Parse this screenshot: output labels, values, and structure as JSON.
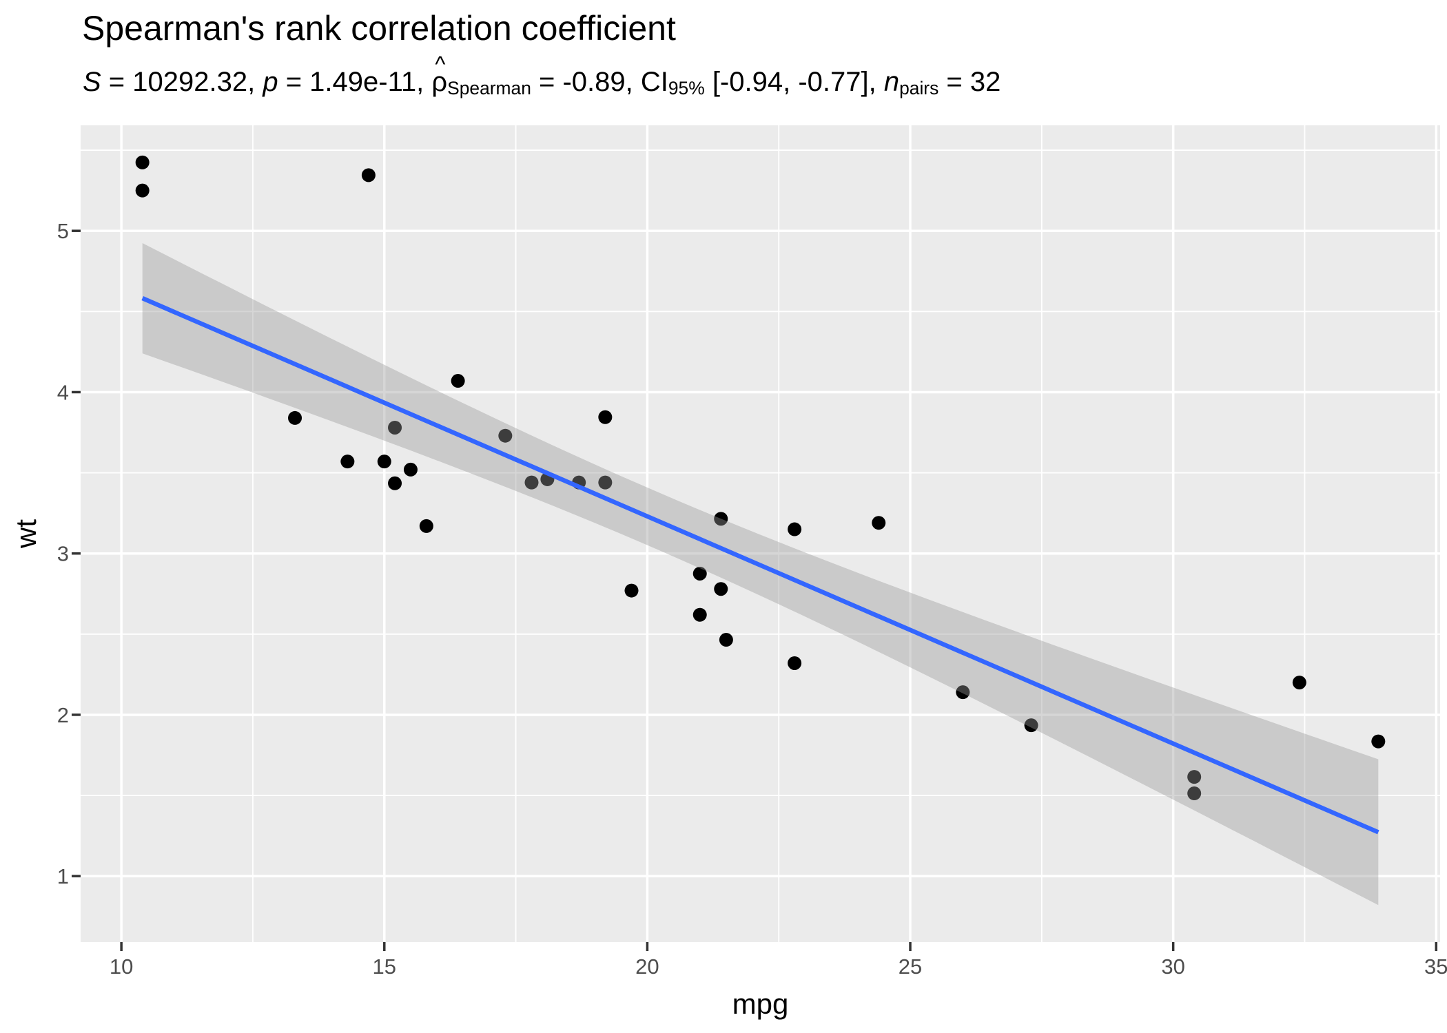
{
  "title": "Spearman's rank correlation coefficient",
  "subtitle_segments": [
    {
      "text": "S",
      "style": "italic"
    },
    {
      "text": " = 10292.32, ",
      "style": "plain"
    },
    {
      "text": "p",
      "style": "italic"
    },
    {
      "text": " = 1.49e-11, ",
      "style": "plain"
    },
    {
      "text": "ρ",
      "style": "hat"
    },
    {
      "text": "Spearman",
      "style": "sub"
    },
    {
      "text": " = -0.89, CI",
      "style": "plain"
    },
    {
      "text": "95%",
      "style": "sub"
    },
    {
      "text": " [-0.94, -0.77], ",
      "style": "plain"
    },
    {
      "text": "n",
      "style": "italic"
    },
    {
      "text": "pairs",
      "style": "sub"
    },
    {
      "text": " = 32",
      "style": "plain"
    }
  ],
  "axes": {
    "x": {
      "title": "mpg",
      "ticks": [
        10,
        15,
        20,
        25,
        30,
        35
      ],
      "minor_ticks": [
        12.5,
        17.5,
        22.5,
        27.5,
        32.5
      ],
      "domain": [
        9.225,
        35.075
      ]
    },
    "y": {
      "title": "wt",
      "ticks": [
        1,
        2,
        3,
        4,
        5
      ],
      "minor_ticks": [
        1.5,
        2.5,
        3.5,
        4.5,
        5.5
      ],
      "domain": [
        0.591,
        5.654
      ]
    }
  },
  "colors": {
    "background": "#FFFFFF",
    "panel_background": "#EBEBEB",
    "grid_major": "#FFFFFF",
    "grid_minor": "#FFFFFF",
    "tick_mark": "#333333",
    "tick_label": "#4D4D4D",
    "axis_title": "#000000",
    "title": "#000000",
    "subtitle": "#000000",
    "point": "#000000",
    "smooth_line": "#3366FF",
    "ribbon": "#999999"
  },
  "chart_data": {
    "type": "scatter",
    "title": "Spearman's rank correlation coefficient",
    "subtitle_plain": "S = 10292.32, p = 1.49e-11, ρ̂ Spearman = -0.89, CI 95% [-0.94, -0.77], n pairs = 32",
    "stats": {
      "S": "10292.32",
      "p": "1.49e-11",
      "rho_spearman": "-0.89",
      "ci_level": "95%",
      "ci_low": "-0.94",
      "ci_high": "-0.77",
      "n_pairs": "32"
    },
    "xlabel": "mpg",
    "ylabel": "wt",
    "xlim": [
      9.225,
      35.075
    ],
    "ylim": [
      0.591,
      5.654
    ],
    "x_ticks": [
      10,
      15,
      20,
      25,
      30,
      35
    ],
    "y_ticks": [
      1,
      2,
      3,
      4,
      5
    ],
    "grid": true,
    "legend": "none",
    "points": [
      [
        21.0,
        2.62
      ],
      [
        21.0,
        2.875
      ],
      [
        22.8,
        2.32
      ],
      [
        21.4,
        3.215
      ],
      [
        18.7,
        3.44
      ],
      [
        18.1,
        3.46
      ],
      [
        14.3,
        3.57
      ],
      [
        24.4,
        3.19
      ],
      [
        22.8,
        3.15
      ],
      [
        19.2,
        3.44
      ],
      [
        17.8,
        3.44
      ],
      [
        16.4,
        4.07
      ],
      [
        17.3,
        3.73
      ],
      [
        15.2,
        3.78
      ],
      [
        10.4,
        5.25
      ],
      [
        10.4,
        5.424
      ],
      [
        14.7,
        5.345
      ],
      [
        32.4,
        2.2
      ],
      [
        30.4,
        1.615
      ],
      [
        33.9,
        1.835
      ],
      [
        21.5,
        2.465
      ],
      [
        15.5,
        3.52
      ],
      [
        15.2,
        3.435
      ],
      [
        13.3,
        3.84
      ],
      [
        19.2,
        3.845
      ],
      [
        27.3,
        1.935
      ],
      [
        26.0,
        2.14
      ],
      [
        30.4,
        1.513
      ],
      [
        15.8,
        3.17
      ],
      [
        19.7,
        2.77
      ],
      [
        15.0,
        3.57
      ],
      [
        21.4,
        2.78
      ]
    ],
    "smooth": {
      "method": "lm",
      "intercept": 6.0473,
      "slope": -0.14086,
      "x_range": [
        10.4,
        33.9
      ],
      "ci": 0.95,
      "se_scale": 1.0094,
      "mean_x": 20.0906,
      "sxx": 1126.047,
      "n": 32,
      "ribbon_opacity": 0.4
    }
  }
}
